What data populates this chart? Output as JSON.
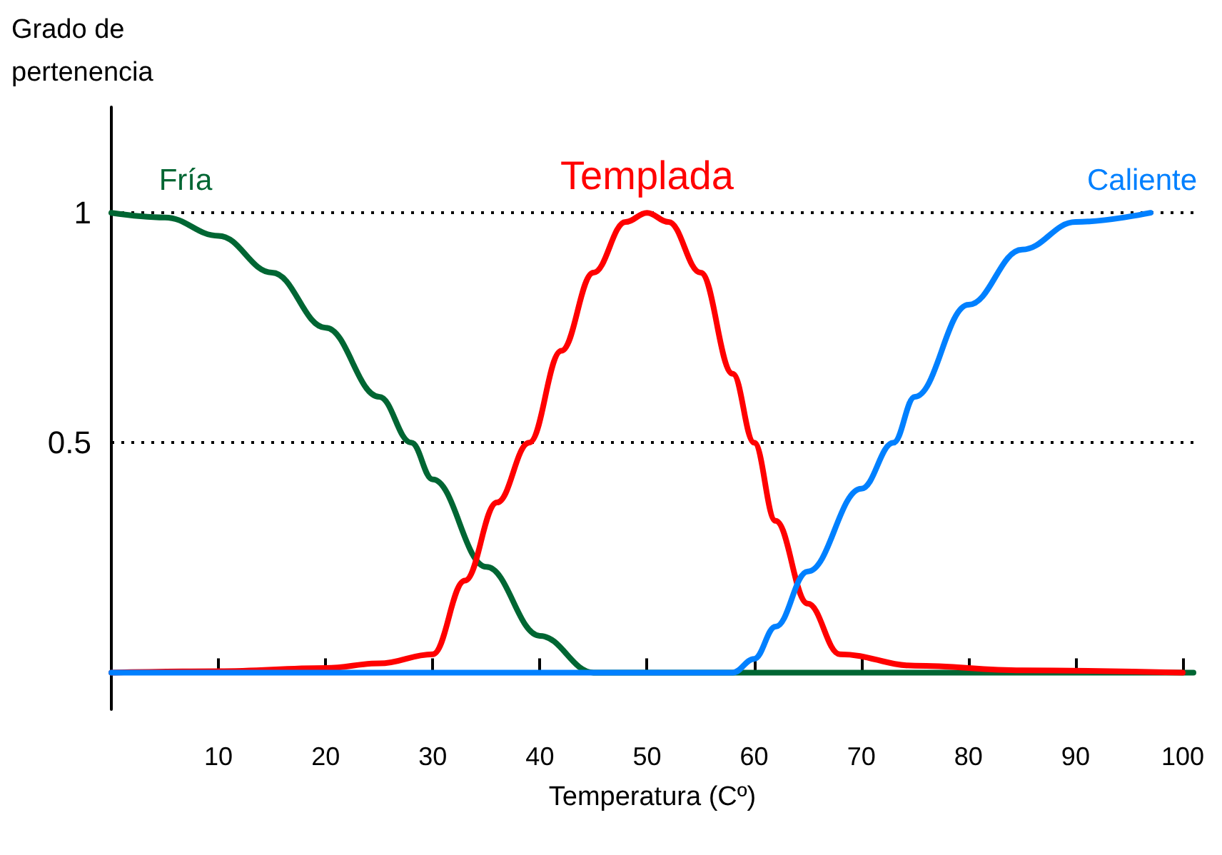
{
  "chart_data": {
    "type": "line",
    "xlabel": "Temperatura (Cº)",
    "ylabel": "Grado de\npertenencia",
    "xlim": [
      0,
      101
    ],
    "xticks": [
      10,
      20,
      30,
      40,
      50,
      60,
      70,
      80,
      90,
      100
    ],
    "ylim": [
      -0.08,
      1.23
    ],
    "yticks": [
      0.5,
      1
    ],
    "grid": "y",
    "legend": false,
    "marker": "none",
    "line_style": "solid",
    "series": [
      {
        "name": "Fría",
        "color": "#006633",
        "x": [
          0,
          5,
          10,
          15,
          20,
          25,
          28,
          30,
          35,
          40,
          45,
          60,
          80,
          101
        ],
        "values": [
          1,
          0.99,
          0.95,
          0.87,
          0.75,
          0.6,
          0.5,
          0.42,
          0.23,
          0.08,
          0,
          0,
          0,
          0
        ]
      },
      {
        "name": "Templada",
        "color": "#ff0000",
        "x": [
          0,
          10,
          20,
          25,
          30,
          33,
          36,
          39,
          42,
          45,
          48,
          50,
          52,
          55,
          58,
          60,
          62,
          65,
          68,
          75,
          85,
          100
        ],
        "values": [
          0,
          0.003,
          0.01,
          0.02,
          0.04,
          0.2,
          0.37,
          0.5,
          0.7,
          0.87,
          0.98,
          1,
          0.98,
          0.87,
          0.65,
          0.5,
          0.33,
          0.15,
          0.04,
          0.015,
          0.005,
          0
        ]
      },
      {
        "name": "Caliente",
        "color": "#0080ff",
        "x": [
          0,
          20,
          40,
          58,
          60,
          62,
          65,
          70,
          73,
          75,
          80,
          85,
          90,
          97
        ],
        "values": [
          0,
          0,
          0,
          0,
          0.03,
          0.1,
          0.22,
          0.4,
          0.5,
          0.6,
          0.8,
          0.92,
          0.98,
          1
        ]
      }
    ]
  }
}
